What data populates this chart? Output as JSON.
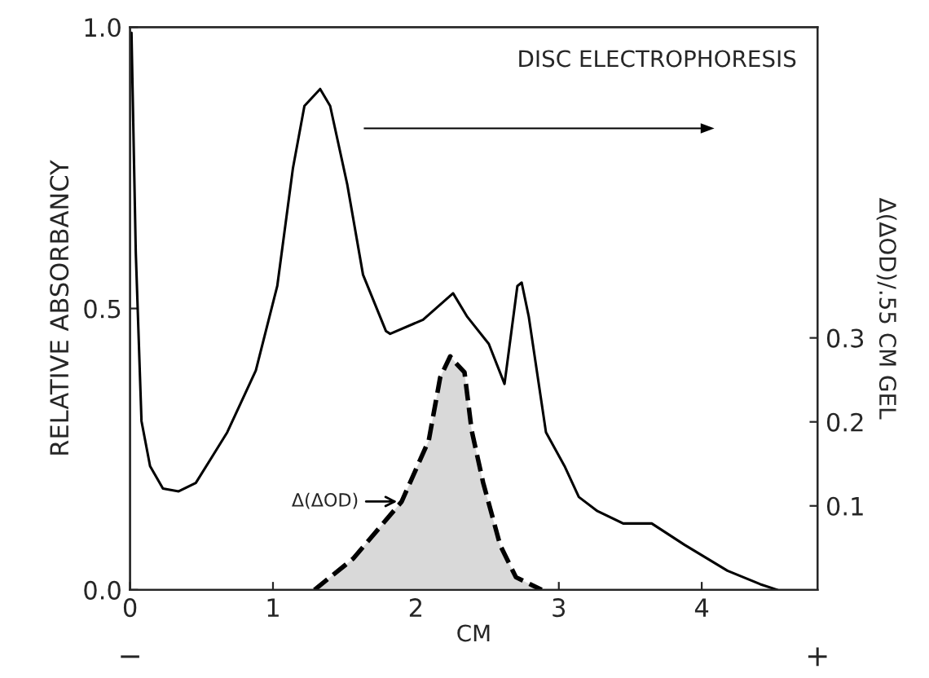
{
  "chart_data": {
    "type": "line",
    "xlabel": "CM",
    "ylabel": "RELATIVE ABSORBANCY",
    "y2label": "Δ(ΔOD)/.55 CM GEL",
    "xlim": [
      0,
      4.81
    ],
    "ylim": [
      0,
      1.0
    ],
    "y2lim": [
      0,
      0.67
    ],
    "xticks": [
      0,
      1,
      2,
      3,
      4
    ],
    "yticks": [
      {
        "value": 0,
        "label": "0.0"
      },
      {
        "value": 0.5,
        "label": "0.5"
      },
      {
        "value": 1.0,
        "label": "1.0"
      }
    ],
    "y2ticks": [
      {
        "value": 0.1,
        "label": "0.1"
      },
      {
        "value": 0.2,
        "label": "0.2"
      },
      {
        "value": 0.3,
        "label": "0.3"
      }
    ],
    "grid": false,
    "legend": false,
    "series": [
      {
        "color": "#000000",
        "line_style": "solid",
        "x": [
          0.01,
          0.04,
          0.08,
          0.14,
          0.23,
          0.34,
          0.46,
          0.68,
          0.88,
          1.03,
          1.14,
          1.22,
          1.33,
          1.4,
          1.52,
          1.63,
          1.79,
          1.82,
          2.05,
          2.26,
          2.36,
          2.51,
          2.62,
          2.71,
          2.74,
          2.79,
          2.91,
          3.04,
          3.14,
          3.27,
          3.45,
          3.65,
          3.88,
          4.18,
          4.41,
          4.53
        ],
        "values": [
          0.99,
          0.6,
          0.3,
          0.22,
          0.18,
          0.175,
          0.19,
          0.28,
          0.39,
          0.54,
          0.75,
          0.86,
          0.89,
          0.86,
          0.72,
          0.56,
          0.46,
          0.455,
          0.48,
          0.527,
          0.485,
          0.437,
          0.366,
          0.54,
          0.546,
          0.485,
          0.28,
          0.22,
          0.165,
          0.14,
          0.118,
          0.118,
          0.08,
          0.034,
          0.01,
          0.0
        ]
      },
      {
        "type": "area",
        "axis": "y2",
        "color": "#d9d9d9",
        "line_style": "dashed",
        "x": [
          1.29,
          1.56,
          1.9,
          2.09,
          2.17,
          2.24,
          2.28,
          2.34,
          2.39,
          2.47,
          2.59,
          2.7,
          2.88
        ],
        "values": [
          0.0,
          0.037,
          0.105,
          0.178,
          0.253,
          0.278,
          0.27,
          0.259,
          0.19,
          0.128,
          0.053,
          0.015,
          0.0
        ]
      }
    ],
    "annotations": [
      "DISC ELECTROPHORESIS",
      {
        "text": "Δ(ΔOD)",
        "x": 1.9,
        "y": 0.157
      },
      "−",
      "+"
    ]
  }
}
